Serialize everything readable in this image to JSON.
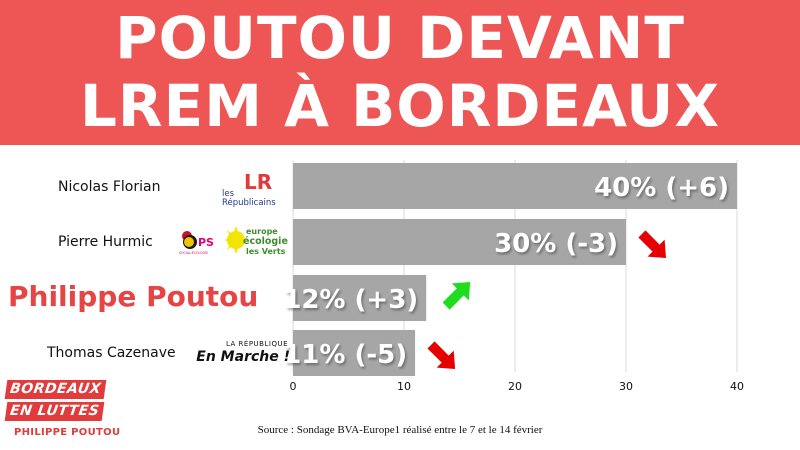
{
  "header": {
    "line1": "POUTOU DEVANT",
    "line2": "LREM À BORDEAUX"
  },
  "chart_data": {
    "type": "bar",
    "orientation": "horizontal",
    "categories": [
      "Nicolas Florian",
      "Pierre Hurmic",
      "Philippe Poutou",
      "Thomas Cazenave"
    ],
    "values": [
      40,
      30,
      12,
      11
    ],
    "changes": [
      "+6",
      "-3",
      "+3",
      "-5"
    ],
    "data_labels": [
      "40% (+6)",
      "30% (-3)",
      "12% (+3)",
      "11% (-5)"
    ],
    "trends": [
      "none",
      "down",
      "up",
      "down"
    ],
    "highlight": "Philippe Poutou",
    "xlim": [
      0,
      40
    ],
    "xticks": [
      0,
      10,
      20,
      30,
      40
    ],
    "grid": true,
    "title": "",
    "xlabel": "",
    "ylabel": ""
  },
  "logos": {
    "lr": {
      "mark": "LR",
      "line1": "les",
      "line2": "Républicains"
    },
    "ps": {
      "text": "PS",
      "sub": "SOCIAL-ÉCOLOGIE"
    },
    "eelv": {
      "l1": "europe",
      "l2": "écologie",
      "l3": "les Verts"
    },
    "em": {
      "top": "LA RÉPUBLIQUE",
      "main": "En Marche !"
    }
  },
  "badge": {
    "line1": "BORDEAUX",
    "line2": "EN LUTTES",
    "sub": "PHILIPPE POUTOU"
  },
  "source": "Source : Sondage BVA-Europe1 réalisé entre le 7 et le 14 février",
  "colors": {
    "header": "#ee5555",
    "bar": "#a6a6a6",
    "grid": "#d9d9d9",
    "highlight": "#e64545",
    "arrow_down": "#e60000",
    "arrow_up": "#1fdc1f"
  }
}
